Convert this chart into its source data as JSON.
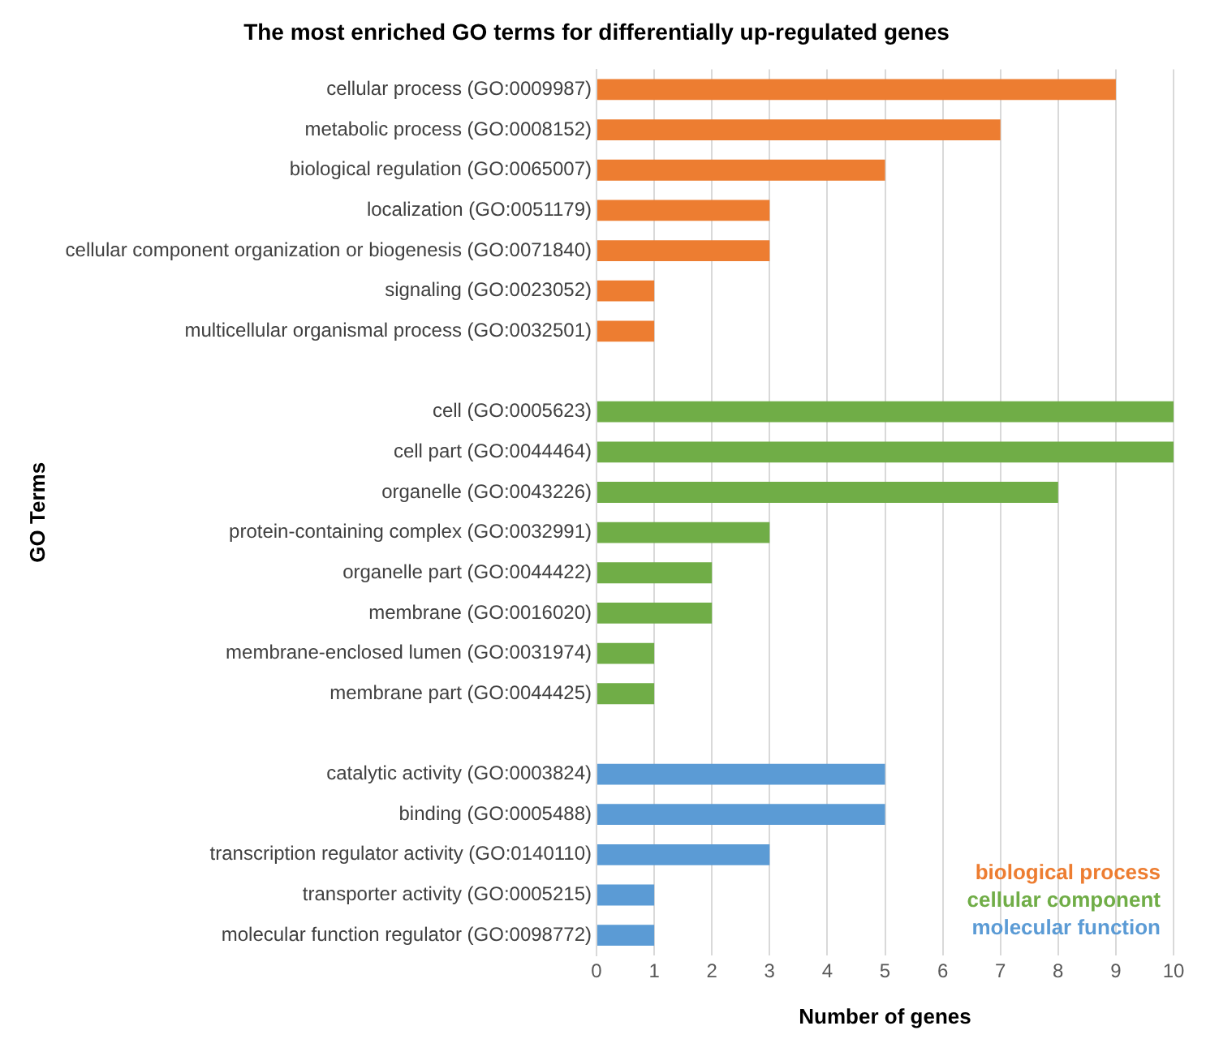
{
  "chart_data": {
    "type": "bar",
    "orientation": "horizontal",
    "stacked": true,
    "title": "The most enriched GO terms for differentially up-regulated genes",
    "xlabel": "Number of genes",
    "ylabel": "GO Terms",
    "categories": [
      "cellular process (GO:0009987)",
      "metabolic process (GO:0008152)",
      "biological regulation (GO:0065007)",
      "localization (GO:0051179)",
      "cellular component organization or biogenesis (GO:0071840)",
      "signaling (GO:0023052)",
      "multicellular organismal process (GO:0032501)",
      null,
      "cell (GO:0005623)",
      "cell part (GO:0044464)",
      "organelle (GO:0043226)",
      "protein-containing complex (GO:0032991)",
      "organelle part (GO:0044422)",
      "membrane (GO:0016020)",
      "membrane-enclosed lumen (GO:0031974)",
      "membrane part (GO:0044425)",
      null,
      "catalytic activity (GO:0003824)",
      "binding (GO:0005488)",
      "transcription regulator activity (GO:0140110)",
      "transporter activity (GO:0005215)",
      "molecular function regulator (GO:0098772)"
    ],
    "series": [
      {
        "name": "biological process",
        "color": "#ed7d31",
        "values": [
          9,
          7,
          5,
          3,
          3,
          1,
          1,
          null,
          null,
          null,
          null,
          null,
          null,
          null,
          null,
          null,
          null,
          null,
          null,
          null,
          null,
          null
        ]
      },
      {
        "name": "cellular component",
        "color": "#70ad47",
        "values": [
          null,
          null,
          null,
          null,
          null,
          null,
          null,
          null,
          10,
          10,
          8,
          3,
          2,
          2,
          1,
          1,
          null,
          null,
          null,
          null,
          null,
          null
        ]
      },
      {
        "name": "molecular function",
        "color": "#5b9bd5",
        "values": [
          null,
          null,
          null,
          null,
          null,
          null,
          null,
          null,
          null,
          null,
          null,
          null,
          null,
          null,
          null,
          null,
          null,
          5,
          5,
          3,
          1,
          1
        ]
      }
    ],
    "xlim": [
      0,
      10
    ],
    "xticks": [
      0,
      1,
      2,
      3,
      4,
      5,
      6,
      7,
      8,
      9,
      10
    ],
    "grid": "x",
    "legend": "bottom right"
  }
}
